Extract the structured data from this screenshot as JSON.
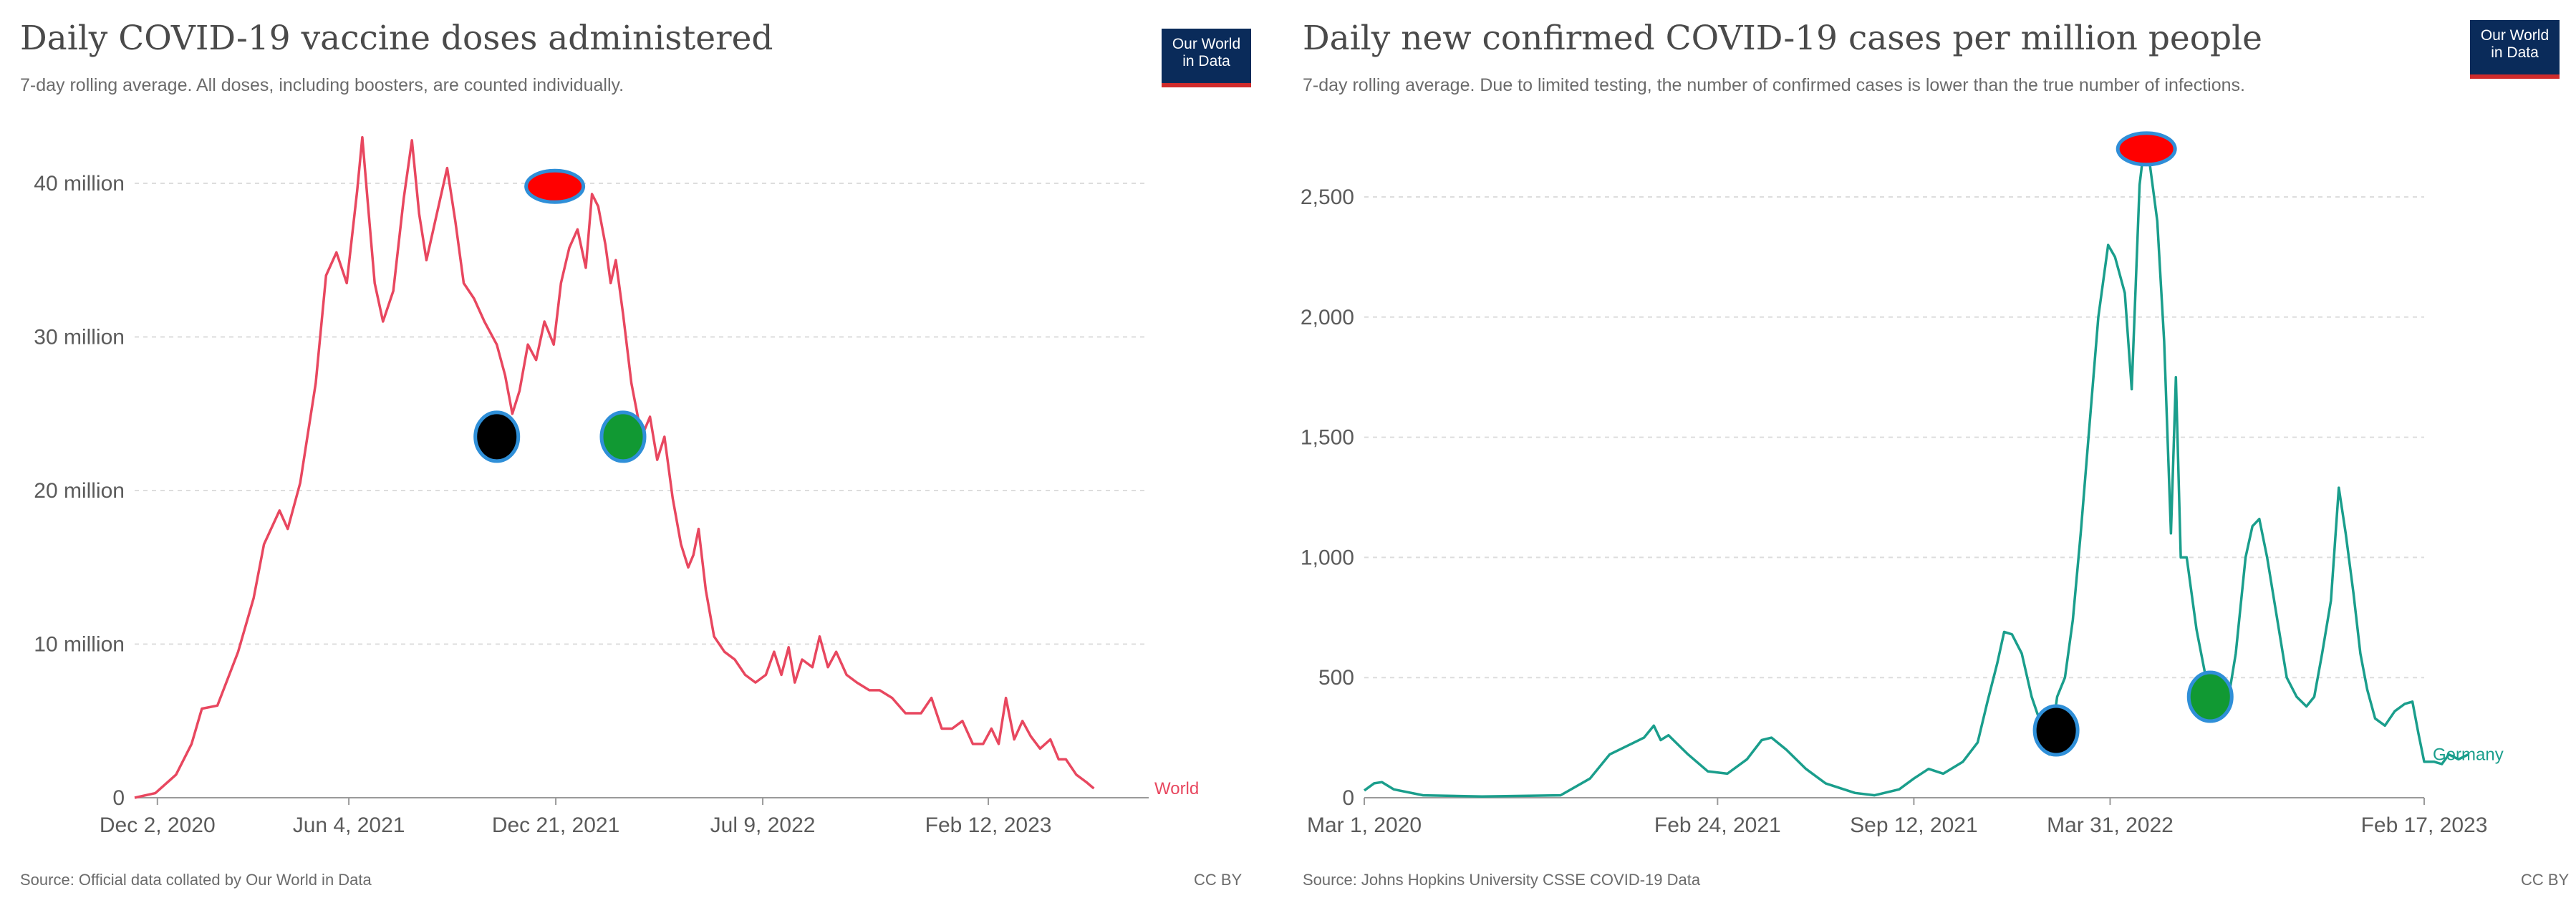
{
  "chart_data": [
    {
      "type": "line",
      "title": "Daily COVID-19 vaccine doses administered",
      "subtitle": "7-day rolling average. All doses, including boosters, are counted individually.",
      "source": "Source: Official data collated by Our World in Data",
      "license": "CC BY",
      "logo": [
        "Our World",
        "in Data"
      ],
      "ylim": [
        0,
        40000000
      ],
      "yticks": [
        {
          "value": 0,
          "label": "0"
        },
        {
          "value": 10000000,
          "label": "10 million"
        },
        {
          "value": 20000000,
          "label": "20 million"
        },
        {
          "value": 30000000,
          "label": "30 million"
        },
        {
          "value": 40000000,
          "label": "40 million"
        }
      ],
      "xlim": [
        0,
        980
      ],
      "xticks": [
        {
          "value": 22,
          "label": "Dec 2, 2020"
        },
        {
          "value": 207,
          "label": "Jun 4, 2021"
        },
        {
          "value": 407,
          "label": "Dec 21, 2021"
        },
        {
          "value": 607,
          "label": "Jul 9, 2022"
        },
        {
          "value": 825,
          "label": "Feb 12, 2023"
        }
      ],
      "series": [
        {
          "name": "World",
          "color": "#e8475f",
          "points": [
            [
              0,
              0
            ],
            [
              20,
              300000
            ],
            [
              40,
              1500000
            ],
            [
              55,
              3500000
            ],
            [
              65,
              5800000
            ],
            [
              80,
              6000000
            ],
            [
              100,
              9500000
            ],
            [
              115,
              13000000
            ],
            [
              125,
              16500000
            ],
            [
              140,
              18700000
            ],
            [
              148,
              17500000
            ],
            [
              160,
              20500000
            ],
            [
              175,
              27000000
            ],
            [
              185,
              34000000
            ],
            [
              195,
              35500000
            ],
            [
              205,
              33500000
            ],
            [
              215,
              39500000
            ],
            [
              220,
              43000000
            ],
            [
              225,
              39000000
            ],
            [
              232,
              33500000
            ],
            [
              240,
              31000000
            ],
            [
              250,
              33000000
            ],
            [
              260,
              39000000
            ],
            [
              268,
              42800000
            ],
            [
              275,
              38000000
            ],
            [
              282,
              35000000
            ],
            [
              292,
              38000000
            ],
            [
              302,
              41000000
            ],
            [
              310,
              37500000
            ],
            [
              318,
              33500000
            ],
            [
              328,
              32500000
            ],
            [
              338,
              31000000
            ],
            [
              350,
              29500000
            ],
            [
              358,
              27500000
            ],
            [
              365,
              25000000
            ],
            [
              372,
              26500000
            ],
            [
              380,
              29500000
            ],
            [
              388,
              28500000
            ],
            [
              396,
              31000000
            ],
            [
              405,
              29500000
            ],
            [
              412,
              33500000
            ],
            [
              420,
              35800000
            ],
            [
              428,
              37000000
            ],
            [
              436,
              34500000
            ],
            [
              442,
              39300000
            ],
            [
              448,
              38500000
            ],
            [
              455,
              36000000
            ],
            [
              460,
              33500000
            ],
            [
              465,
              35000000
            ],
            [
              472,
              31500000
            ],
            [
              480,
              27000000
            ],
            [
              490,
              23500000
            ],
            [
              498,
              24800000
            ],
            [
              505,
              22000000
            ],
            [
              512,
              23500000
            ],
            [
              520,
              19500000
            ],
            [
              528,
              16500000
            ],
            [
              535,
              15000000
            ],
            [
              540,
              15800000
            ],
            [
              545,
              17500000
            ],
            [
              552,
              13500000
            ],
            [
              560,
              10500000
            ],
            [
              570,
              9500000
            ],
            [
              580,
              9000000
            ],
            [
              590,
              8000000
            ],
            [
              600,
              7500000
            ],
            [
              610,
              8000000
            ],
            [
              618,
              9500000
            ],
            [
              625,
              8000000
            ],
            [
              632,
              9800000
            ],
            [
              638,
              7500000
            ],
            [
              645,
              9000000
            ],
            [
              655,
              8500000
            ],
            [
              662,
              10500000
            ],
            [
              670,
              8500000
            ],
            [
              678,
              9500000
            ],
            [
              688,
              8000000
            ],
            [
              698,
              7500000
            ],
            [
              710,
              7000000
            ],
            [
              720,
              7000000
            ],
            [
              732,
              6500000
            ],
            [
              745,
              5500000
            ],
            [
              760,
              5500000
            ],
            [
              770,
              6500000
            ],
            [
              780,
              4500000
            ],
            [
              790,
              4500000
            ],
            [
              800,
              5000000
            ],
            [
              810,
              3500000
            ],
            [
              820,
              3500000
            ],
            [
              828,
              4500000
            ],
            [
              835,
              3500000
            ],
            [
              842,
              6500000
            ],
            [
              850,
              3800000
            ],
            [
              858,
              5000000
            ],
            [
              866,
              4000000
            ],
            [
              875,
              3200000
            ],
            [
              885,
              3800000
            ],
            [
              893,
              2500000
            ],
            [
              900,
              2500000
            ],
            [
              910,
              1500000
            ],
            [
              920,
              1000000
            ],
            [
              927,
              600000
            ]
          ]
        }
      ],
      "markers": [
        {
          "name": "red",
          "x": 406,
          "y": 39800000,
          "color": "#ff0000"
        },
        {
          "name": "black",
          "x": 350,
          "y": 23500000,
          "color": "#000000"
        },
        {
          "name": "green",
          "x": 472,
          "y": 23500000,
          "color": "#119933"
        }
      ]
    },
    {
      "type": "line",
      "title": "Daily new confirmed COVID-19 cases per million people",
      "subtitle": "7-day rolling average. Due to limited testing, the number of confirmed cases is lower than the true number of infections.",
      "source": "Source: Johns Hopkins University CSSE COVID-19 Data",
      "license": "CC BY",
      "logo": [
        "Our World",
        "in Data"
      ],
      "ylim": [
        0,
        2500
      ],
      "yticks": [
        {
          "value": 0,
          "label": "0"
        },
        {
          "value": 500,
          "label": "500"
        },
        {
          "value": 1000,
          "label": "1,000"
        },
        {
          "value": 1500,
          "label": "1,500"
        },
        {
          "value": 2000,
          "label": "2,000"
        },
        {
          "value": 2500,
          "label": "2,500"
        }
      ],
      "xlim": [
        0,
        1080
      ],
      "xticks": [
        {
          "value": 0,
          "label": "Mar 1, 2020"
        },
        {
          "value": 360,
          "label": "Feb 24, 2021"
        },
        {
          "value": 560,
          "label": "Sep 12, 2021"
        },
        {
          "value": 760,
          "label": "Mar 31, 2022"
        },
        {
          "value": 1080,
          "label": "Feb 17, 2023"
        }
      ],
      "series": [
        {
          "name": "Germany",
          "color": "#1a9e8c",
          "points": [
            [
              0,
              30
            ],
            [
              10,
              60
            ],
            [
              18,
              65
            ],
            [
              30,
              35
            ],
            [
              60,
              10
            ],
            [
              120,
              5
            ],
            [
              200,
              10
            ],
            [
              230,
              80
            ],
            [
              250,
              180
            ],
            [
              270,
              220
            ],
            [
              285,
              250
            ],
            [
              295,
              300
            ],
            [
              302,
              240
            ],
            [
              310,
              260
            ],
            [
              330,
              180
            ],
            [
              350,
              110
            ],
            [
              370,
              100
            ],
            [
              390,
              160
            ],
            [
              405,
              240
            ],
            [
              415,
              250
            ],
            [
              430,
              200
            ],
            [
              450,
              120
            ],
            [
              470,
              60
            ],
            [
              500,
              20
            ],
            [
              520,
              10
            ],
            [
              545,
              35
            ],
            [
              560,
              80
            ],
            [
              575,
              120
            ],
            [
              590,
              100
            ],
            [
              610,
              150
            ],
            [
              625,
              230
            ],
            [
              635,
              400
            ],
            [
              645,
              560
            ],
            [
              652,
              690
            ],
            [
              660,
              680
            ],
            [
              670,
              600
            ],
            [
              680,
              420
            ],
            [
              690,
              300
            ],
            [
              698,
              180
            ],
            [
              706,
              420
            ],
            [
              714,
              500
            ],
            [
              722,
              740
            ],
            [
              730,
              1100
            ],
            [
              738,
              1500
            ],
            [
              748,
              2000
            ],
            [
              758,
              2300
            ],
            [
              765,
              2250
            ],
            [
              775,
              2100
            ],
            [
              782,
              1700
            ],
            [
              790,
              2550
            ],
            [
              795,
              2720
            ],
            [
              800,
              2650
            ],
            [
              808,
              2400
            ],
            [
              815,
              1900
            ],
            [
              822,
              1100
            ],
            [
              827,
              1750
            ],
            [
              832,
              1000
            ],
            [
              838,
              1000
            ],
            [
              848,
              700
            ],
            [
              858,
              490
            ],
            [
              862,
              400
            ],
            [
              868,
              350
            ],
            [
              874,
              370
            ],
            [
              880,
              400
            ],
            [
              888,
              600
            ],
            [
              898,
              1000
            ],
            [
              905,
              1130
            ],
            [
              912,
              1160
            ],
            [
              920,
              1000
            ],
            [
              930,
              750
            ],
            [
              940,
              500
            ],
            [
              950,
              420
            ],
            [
              960,
              380
            ],
            [
              968,
              420
            ],
            [
              976,
              600
            ],
            [
              985,
              820
            ],
            [
              993,
              1290
            ],
            [
              1000,
              1100
            ],
            [
              1008,
              850
            ],
            [
              1015,
              600
            ],
            [
              1022,
              450
            ],
            [
              1030,
              330
            ],
            [
              1040,
              300
            ],
            [
              1050,
              360
            ],
            [
              1060,
              390
            ],
            [
              1068,
              400
            ],
            [
              1074,
              270
            ],
            [
              1080,
              150
            ],
            [
              1090,
              150
            ],
            [
              1098,
              140
            ],
            [
              1105,
              180
            ],
            [
              1115,
              160
            ],
            [
              1125,
              180
            ]
          ]
        }
      ],
      "markers": [
        {
          "name": "red",
          "x": 797,
          "y": 2700,
          "color": "#ff0000"
        },
        {
          "name": "black",
          "x": 705,
          "y": 280,
          "color": "#000000"
        },
        {
          "name": "green",
          "x": 862,
          "y": 420,
          "color": "#119933"
        }
      ]
    }
  ]
}
